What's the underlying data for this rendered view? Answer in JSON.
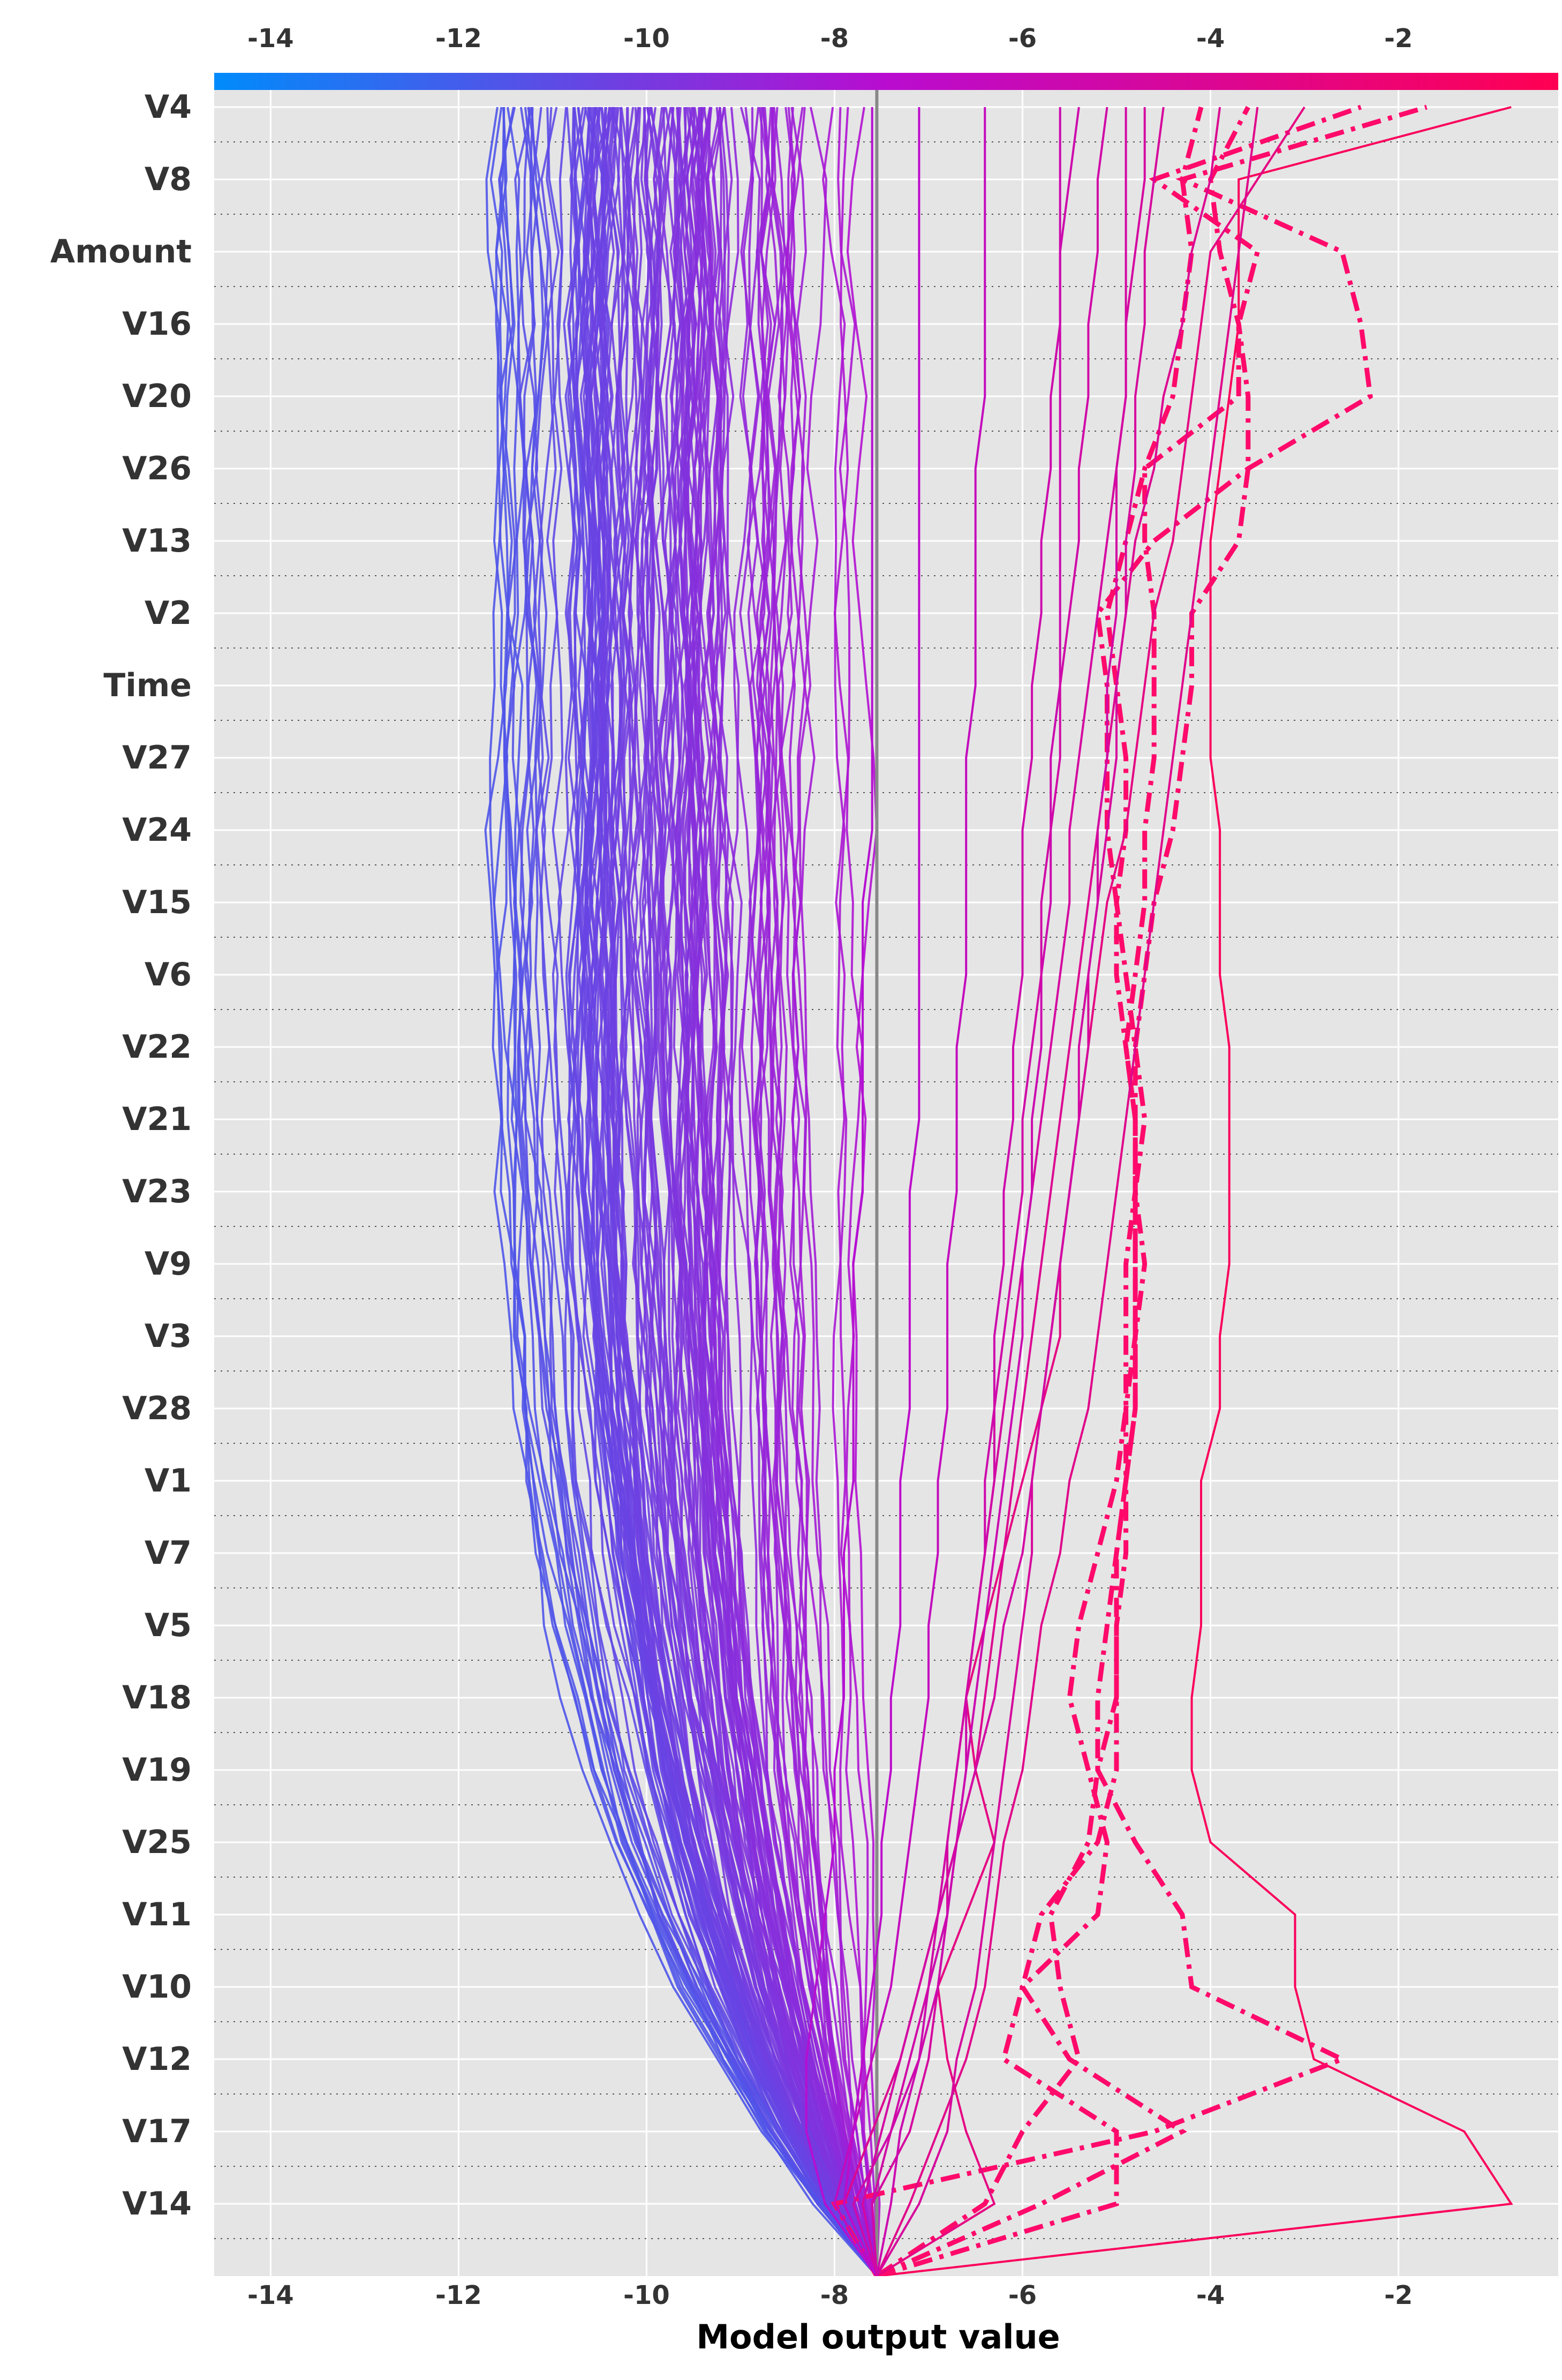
{
  "chart_data": {
    "type": "line",
    "title": "",
    "xlabel": "Model output value",
    "ylabel": "",
    "xlim": [
      -14.6,
      -0.3
    ],
    "x_ticks": [
      "-14",
      "-12",
      "-10",
      "-8",
      "-6",
      "-4",
      "-2"
    ],
    "x_tick_values": [
      -14,
      -12,
      -10,
      -8,
      -6,
      -4,
      -2
    ],
    "top_axis_ticks": [
      "-14",
      "-12",
      "-10",
      "-8",
      "-6",
      "-4",
      "-2"
    ],
    "base_value": -7.55,
    "grid": true,
    "features": [
      "V4",
      "V8",
      "Amount",
      "V16",
      "V20",
      "V26",
      "V13",
      "V2",
      "Time",
      "V27",
      "V24",
      "V15",
      "V6",
      "V22",
      "V21",
      "V23",
      "V9",
      "V3",
      "V28",
      "V1",
      "V7",
      "V5",
      "V18",
      "V19",
      "V25",
      "V11",
      "V10",
      "V12",
      "V17",
      "V14"
    ],
    "colorbar": {
      "min": -14.6,
      "max": -0.3,
      "low_color": "#008bfb",
      "mid_color": "#b90cd0",
      "high_color": "#ff0052"
    },
    "highlight_color": "#ff0a6b",
    "num_background_samples": 150,
    "series": [
      {
        "final": -0.8,
        "style": "solid",
        "path": [
          -7.55,
          -0.8,
          -1.3,
          -2.9,
          -3.1,
          -3.1,
          -4.0,
          -4.2,
          -4.2,
          -4.1,
          -4.1,
          -4.1,
          -3.9,
          -3.9,
          -3.8,
          -3.8,
          -3.8,
          -3.8,
          -3.9,
          -3.9,
          -3.9,
          -4.0,
          -4.0,
          -4.0,
          -4.0,
          -3.9,
          -3.8,
          -3.7,
          -3.7,
          -3.7,
          -0.8
        ]
      },
      {
        "final": -1.7,
        "style": "dashdot",
        "path": [
          -7.55,
          -8.0,
          -4.6,
          -2.6,
          -4.2,
          -4.3,
          -4.8,
          -5.2,
          -5.0,
          -5.0,
          -4.9,
          -4.9,
          -4.8,
          -4.8,
          -4.8,
          -4.8,
          -4.8,
          -4.9,
          -5.0,
          -5.0,
          -5.1,
          -5.1,
          -5.1,
          -5.2,
          -4.6,
          -3.6,
          -2.3,
          -2.4,
          -2.6,
          -4.3,
          -1.7
        ]
      },
      {
        "final": -2.4,
        "style": "dashdot",
        "path": [
          -7.55,
          -5.0,
          -5.0,
          -6.2,
          -6.0,
          -5.8,
          -5.2,
          -5.0,
          -5.0,
          -5.0,
          -5.0,
          -4.9,
          -4.9,
          -4.8,
          -4.7,
          -4.8,
          -4.8,
          -4.9,
          -4.8,
          -4.7,
          -4.7,
          -4.6,
          -4.6,
          -4.6,
          -4.7,
          -4.7,
          -3.7,
          -3.7,
          -3.5,
          -4.6,
          -2.4
        ]
      },
      {
        "final": -3.6,
        "style": "dashdot",
        "path": [
          -7.55,
          -5.8,
          -4.3,
          -5.5,
          -6.0,
          -5.2,
          -5.1,
          -5.3,
          -5.5,
          -5.4,
          -5.2,
          -5.0,
          -4.9,
          -4.9,
          -4.9,
          -4.8,
          -4.8,
          -4.8,
          -4.7,
          -4.6,
          -4.4,
          -4.3,
          -4.2,
          -4.2,
          -3.7,
          -3.6,
          -3.6,
          -3.7,
          -3.9,
          -4.0,
          -3.6
        ]
      },
      {
        "final": -4.1,
        "style": "dashdot",
        "path": [
          -7.55,
          -6.4,
          -6.0,
          -5.4,
          -5.6,
          -5.7,
          -5.3,
          -5.2,
          -5.2,
          -5.1,
          -5.0,
          -4.9,
          -4.8,
          -4.8,
          -4.8,
          -4.8,
          -4.7,
          -4.8,
          -4.9,
          -5.0,
          -4.9,
          -4.9,
          -5.0,
          -5.1,
          -4.9,
          -4.7,
          -4.4,
          -4.3,
          -4.2,
          -4.3,
          -4.1
        ]
      },
      {
        "final": -3.0,
        "style": "solid",
        "path": [
          -7.55,
          -6.3,
          -6.6,
          -6.8,
          -6.9,
          -6.6,
          -6.3,
          -6.5,
          -6.6,
          -6.4,
          -6.2,
          -6.0,
          -5.8,
          -5.6,
          -5.6,
          -5.5,
          -5.4,
          -5.3,
          -5.2,
          -5.1,
          -4.9,
          -4.8,
          -4.7,
          -4.6,
          -4.4,
          -4.3,
          -4.2,
          -4.1,
          -4.0,
          -3.5,
          -3.0
        ]
      },
      {
        "final": -4.7,
        "style": "solid",
        "path": [
          -7.55,
          -7.6,
          -7.2,
          -7.0,
          -6.9,
          -6.8,
          -6.8,
          -6.7,
          -6.6,
          -6.5,
          -6.4,
          -6.3,
          -6.2,
          -6.1,
          -6.0,
          -5.9,
          -5.8,
          -5.7,
          -5.6,
          -5.5,
          -5.5,
          -5.4,
          -5.3,
          -5.2,
          -5.1,
          -5.0,
          -4.9,
          -4.9,
          -4.8,
          -4.7,
          -4.7
        ]
      },
      {
        "final": -3.5,
        "style": "solid",
        "path": [
          -7.55,
          -7.2,
          -6.9,
          -6.6,
          -6.4,
          -6.3,
          -6.2,
          -6.0,
          -5.9,
          -5.8,
          -5.6,
          -5.5,
          -5.3,
          -5.2,
          -5.1,
          -5.0,
          -4.9,
          -4.8,
          -4.7,
          -4.6,
          -4.5,
          -4.4,
          -4.3,
          -4.2,
          -4.1,
          -4.0,
          -3.9,
          -3.8,
          -3.7,
          -3.6,
          -3.5
        ]
      },
      {
        "final": -3.9,
        "style": "solid",
        "path": [
          -7.55,
          -7.9,
          -7.6,
          -7.3,
          -7.1,
          -6.9,
          -6.7,
          -6.5,
          -6.4,
          -6.3,
          -6.2,
          -6.1,
          -6.0,
          -5.9,
          -5.8,
          -5.7,
          -5.6,
          -5.5,
          -5.4,
          -5.3,
          -5.2,
          -5.1,
          -5.0,
          -4.9,
          -4.8,
          -4.6,
          -4.5,
          -4.3,
          -4.2,
          -4.0,
          -3.9
        ]
      },
      {
        "final": -5.4,
        "style": "solid",
        "path": [
          -7.55,
          -7.8,
          -7.4,
          -7.1,
          -6.9,
          -6.8,
          -6.7,
          -6.6,
          -6.6,
          -6.5,
          -6.4,
          -6.4,
          -6.3,
          -6.3,
          -6.2,
          -6.2,
          -6.1,
          -6.1,
          -6.0,
          -6.0,
          -6.0,
          -5.9,
          -5.9,
          -5.8,
          -5.8,
          -5.7,
          -5.7,
          -5.6,
          -5.6,
          -5.5,
          -5.4
        ]
      },
      {
        "final": -4.5,
        "style": "solid",
        "path": [
          -7.55,
          -7.1,
          -6.8,
          -6.7,
          -6.5,
          -6.4,
          -6.3,
          -6.2,
          -6.1,
          -6.0,
          -5.9,
          -5.9,
          -5.8,
          -5.7,
          -5.6,
          -5.5,
          -5.4,
          -5.3,
          -5.3,
          -5.2,
          -5.1,
          -5.0,
          -5.0,
          -4.9,
          -4.9,
          -4.8,
          -4.8,
          -4.7,
          -4.7,
          -4.6,
          -4.5
        ]
      },
      {
        "final": -6.4,
        "style": "solid",
        "path": [
          -7.55,
          -8.0,
          -7.8,
          -7.6,
          -7.4,
          -7.3,
          -7.2,
          -7.1,
          -7.0,
          -7.0,
          -6.9,
          -6.9,
          -6.8,
          -6.8,
          -6.8,
          -6.7,
          -6.7,
          -6.7,
          -6.6,
          -6.6,
          -6.6,
          -6.6,
          -6.5,
          -6.5,
          -6.5,
          -6.5,
          -6.4,
          -6.4,
          -6.4,
          -6.4,
          -6.4
        ]
      },
      {
        "final": -5.6,
        "style": "solid",
        "path": [
          -7.55,
          -7.4,
          -7.3,
          -7.1,
          -7.0,
          -6.8,
          -6.7,
          -6.6,
          -6.5,
          -6.4,
          -6.3,
          -6.2,
          -6.1,
          -6.0,
          -6.0,
          -5.9,
          -5.9,
          -5.8,
          -5.8,
          -5.7,
          -5.7,
          -5.7,
          -5.6,
          -5.6,
          -5.6,
          -5.6,
          -5.6,
          -5.6,
          -5.6,
          -5.6,
          -5.6
        ]
      },
      {
        "final": -7.1,
        "style": "solid",
        "path": [
          -7.55,
          -7.9,
          -7.8,
          -7.7,
          -7.6,
          -7.5,
          -7.5,
          -7.4,
          -7.4,
          -7.3,
          -7.3,
          -7.3,
          -7.2,
          -7.2,
          -7.2,
          -7.2,
          -7.1,
          -7.1,
          -7.1,
          -7.1,
          -7.1,
          -7.1,
          -7.1,
          -7.1,
          -7.1,
          -7.1,
          -7.1,
          -7.1,
          -7.1,
          -7.1,
          -7.1
        ]
      },
      {
        "final": -5.1,
        "style": "solid",
        "path": [
          -7.55,
          -7.6,
          -7.4,
          -7.2,
          -7.0,
          -6.9,
          -6.8,
          -6.7,
          -6.6,
          -6.5,
          -6.4,
          -6.3,
          -6.3,
          -6.2,
          -6.1,
          -6.0,
          -6.0,
          -5.9,
          -5.8,
          -5.8,
          -5.7,
          -5.6,
          -5.6,
          -5.5,
          -5.4,
          -5.4,
          -5.3,
          -5.3,
          -5.2,
          -5.2,
          -5.1
        ]
      },
      {
        "final": -7.6,
        "style": "solid",
        "path": [
          -7.55,
          -8.1,
          -8.3,
          -8.3,
          -8.2,
          -8.1,
          -8.0,
          -8.0,
          -7.9,
          -7.9,
          -7.9,
          -7.8,
          -7.8,
          -7.8,
          -7.8,
          -7.7,
          -7.7,
          -7.7,
          -7.7,
          -7.7,
          -7.6,
          -7.6,
          -7.6,
          -7.6,
          -7.6,
          -7.6,
          -7.6,
          -7.6,
          -7.6,
          -7.6,
          -7.6
        ]
      },
      {
        "final": -4.9,
        "style": "solid",
        "path": [
          -7.55,
          -7.7,
          -7.5,
          -7.3,
          -7.1,
          -6.9,
          -6.7,
          -6.5,
          -6.3,
          -6.2,
          -6.0,
          -5.9,
          -5.8,
          -5.7,
          -5.6,
          -5.5,
          -5.4,
          -5.4,
          -5.3,
          -5.2,
          -5.2,
          -5.1,
          -5.1,
          -5.0,
          -5.0,
          -5.0,
          -4.9,
          -4.9,
          -4.9,
          -4.9,
          -4.9
        ]
      }
    ]
  }
}
